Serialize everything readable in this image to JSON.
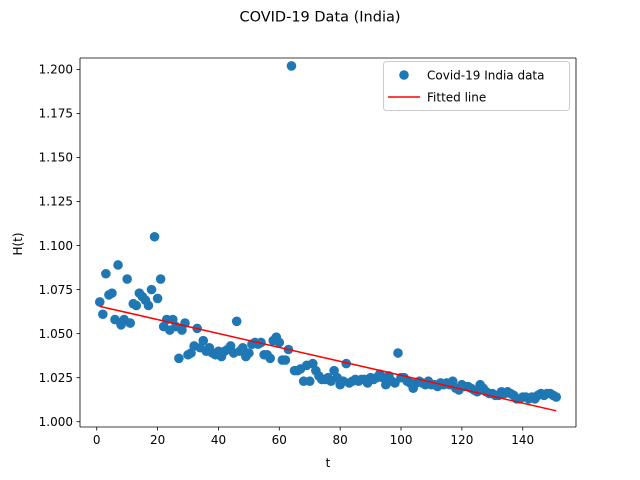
{
  "chart_data": {
    "type": "scatter",
    "title": "COVID-19 Data (India)",
    "xlabel": "t",
    "ylabel": "H(t)",
    "xlim": [
      -5.5,
      157.5
    ],
    "ylim": [
      0.997,
      1.2065
    ],
    "xticks": [
      0,
      20,
      40,
      60,
      80,
      100,
      120,
      140
    ],
    "xtick_labels": [
      "0",
      "20",
      "40",
      "60",
      "80",
      "100",
      "120",
      "140"
    ],
    "yticks": [
      1.0,
      1.025,
      1.05,
      1.075,
      1.1,
      1.125,
      1.15,
      1.175,
      1.2
    ],
    "ytick_labels": [
      "1.000",
      "1.025",
      "1.050",
      "1.075",
      "1.100",
      "1.125",
      "1.150",
      "1.175",
      "1.200"
    ],
    "grid": false,
    "legend_position": "top-right",
    "series": [
      {
        "name": "Covid-19 India data",
        "kind": "scatter",
        "color": "#1f77b4",
        "points": [
          [
            1,
            1.068
          ],
          [
            2,
            1.061
          ],
          [
            3,
            1.084
          ],
          [
            4,
            1.072
          ],
          [
            5,
            1.073
          ],
          [
            6,
            1.058
          ],
          [
            7,
            1.089
          ],
          [
            8,
            1.055
          ],
          [
            9,
            1.058
          ],
          [
            10,
            1.081
          ],
          [
            11,
            1.056
          ],
          [
            12,
            1.067
          ],
          [
            13,
            1.066
          ],
          [
            14,
            1.073
          ],
          [
            15,
            1.071
          ],
          [
            16,
            1.069
          ],
          [
            17,
            1.066
          ],
          [
            18,
            1.075
          ],
          [
            19,
            1.105
          ],
          [
            20,
            1.07
          ],
          [
            21,
            1.081
          ],
          [
            22,
            1.054
          ],
          [
            23,
            1.058
          ],
          [
            24,
            1.052
          ],
          [
            25,
            1.058
          ],
          [
            26,
            1.054
          ],
          [
            27,
            1.036
          ],
          [
            28,
            1.052
          ],
          [
            29,
            1.056
          ],
          [
            30,
            1.038
          ],
          [
            31,
            1.039
          ],
          [
            32,
            1.043
          ],
          [
            33,
            1.053
          ],
          [
            34,
            1.042
          ],
          [
            35,
            1.046
          ],
          [
            36,
            1.04
          ],
          [
            37,
            1.042
          ],
          [
            38,
            1.039
          ],
          [
            39,
            1.038
          ],
          [
            40,
            1.04
          ],
          [
            41,
            1.037
          ],
          [
            42,
            1.04
          ],
          [
            43,
            1.041
          ],
          [
            44,
            1.043
          ],
          [
            45,
            1.039
          ],
          [
            46,
            1.057
          ],
          [
            47,
            1.04
          ],
          [
            48,
            1.042
          ],
          [
            49,
            1.037
          ],
          [
            50,
            1.039
          ],
          [
            51,
            1.044
          ],
          [
            52,
            1.045
          ],
          [
            53,
            1.044
          ],
          [
            54,
            1.045
          ],
          [
            55,
            1.038
          ],
          [
            56,
            1.038
          ],
          [
            57,
            1.036
          ],
          [
            58,
            1.046
          ],
          [
            59,
            1.048
          ],
          [
            60,
            1.045
          ],
          [
            61,
            1.035
          ],
          [
            62,
            1.035
          ],
          [
            63,
            1.041
          ],
          [
            64,
            1.202
          ],
          [
            65,
            1.029
          ],
          [
            66,
            1.029
          ],
          [
            67,
            1.03
          ],
          [
            68,
            1.023
          ],
          [
            69,
            1.032
          ],
          [
            70,
            1.023
          ],
          [
            71,
            1.033
          ],
          [
            72,
            1.029
          ],
          [
            73,
            1.026
          ],
          [
            74,
            1.024
          ],
          [
            75,
            1.024
          ],
          [
            76,
            1.025
          ],
          [
            77,
            1.023
          ],
          [
            78,
            1.029
          ],
          [
            79,
            1.025
          ],
          [
            80,
            1.021
          ],
          [
            81,
            1.023
          ],
          [
            82,
            1.033
          ],
          [
            83,
            1.022
          ],
          [
            84,
            1.023
          ],
          [
            85,
            1.024
          ],
          [
            86,
            1.023
          ],
          [
            87,
            1.024
          ],
          [
            88,
            1.024
          ],
          [
            89,
            1.022
          ],
          [
            90,
            1.025
          ],
          [
            91,
            1.024
          ],
          [
            92,
            1.025
          ],
          [
            93,
            1.027
          ],
          [
            94,
            1.025
          ],
          [
            95,
            1.021
          ],
          [
            96,
            1.026
          ],
          [
            97,
            1.023
          ],
          [
            98,
            1.022
          ],
          [
            99,
            1.039
          ],
          [
            100,
            1.025
          ],
          [
            101,
            1.025
          ],
          [
            102,
            1.023
          ],
          [
            103,
            1.022
          ],
          [
            104,
            1.019
          ],
          [
            105,
            1.022
          ],
          [
            106,
            1.023
          ],
          [
            107,
            1.022
          ],
          [
            108,
            1.021
          ],
          [
            109,
            1.023
          ],
          [
            110,
            1.021
          ],
          [
            111,
            1.021
          ],
          [
            112,
            1.02
          ],
          [
            113,
            1.022
          ],
          [
            114,
            1.021
          ],
          [
            115,
            1.022
          ],
          [
            116,
            1.021
          ],
          [
            117,
            1.023
          ],
          [
            118,
            1.019
          ],
          [
            119,
            1.018
          ],
          [
            120,
            1.021
          ],
          [
            121,
            1.02
          ],
          [
            122,
            1.02
          ],
          [
            123,
            1.019
          ],
          [
            124,
            1.018
          ],
          [
            125,
            1.017
          ],
          [
            126,
            1.021
          ],
          [
            127,
            1.019
          ],
          [
            128,
            1.017
          ],
          [
            129,
            1.016
          ],
          [
            130,
            1.016
          ],
          [
            131,
            1.015
          ],
          [
            132,
            1.015
          ],
          [
            133,
            1.017
          ],
          [
            134,
            1.016
          ],
          [
            135,
            1.017
          ],
          [
            136,
            1.016
          ],
          [
            137,
            1.015
          ],
          [
            138,
            1.013
          ],
          [
            139,
            1.013
          ],
          [
            140,
            1.014
          ],
          [
            141,
            1.014
          ],
          [
            142,
            1.013
          ],
          [
            143,
            1.014
          ],
          [
            144,
            1.013
          ],
          [
            145,
            1.015
          ],
          [
            146,
            1.016
          ],
          [
            147,
            1.015
          ],
          [
            148,
            1.016
          ],
          [
            149,
            1.016
          ],
          [
            150,
            1.015
          ],
          [
            151,
            1.014
          ]
        ]
      },
      {
        "name": "Fitted line",
        "kind": "line",
        "color": "#ff0000",
        "points": [
          [
            1,
            1.0655
          ],
          [
            151,
            1.0062
          ]
        ]
      }
    ]
  }
}
